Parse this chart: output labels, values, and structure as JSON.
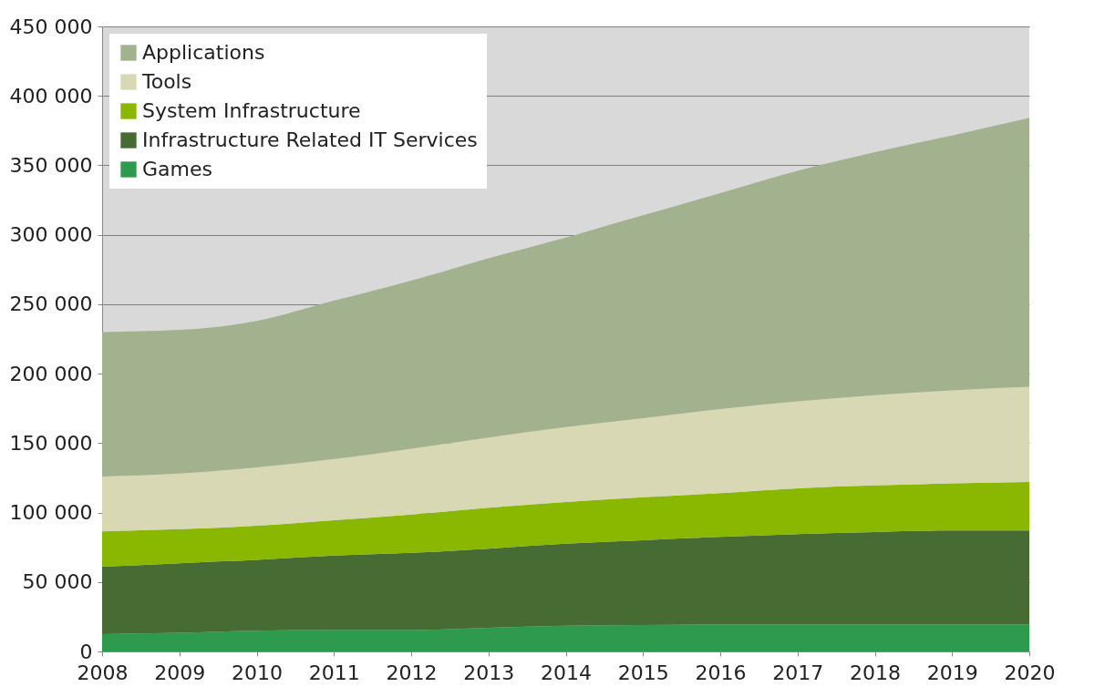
{
  "chart_data": {
    "type": "area",
    "stacked": true,
    "categories": [
      "2008",
      "2009",
      "2010",
      "2011",
      "2012",
      "2013",
      "2014",
      "2015",
      "2016",
      "2017",
      "2018",
      "2019",
      "2020"
    ],
    "series": [
      {
        "name": "Games",
        "color": "#2e9a4e",
        "values": [
          12500,
          13500,
          15000,
          15500,
          15500,
          17000,
          18500,
          19000,
          19500,
          19500,
          19500,
          19500,
          19500
        ]
      },
      {
        "name": "Infrastructure Related IT Services",
        "color": "#466b33",
        "values": [
          48500,
          50000,
          51000,
          53500,
          55500,
          57000,
          59000,
          61000,
          63000,
          65000,
          66500,
          67500,
          67500
        ]
      },
      {
        "name": "System Infrastructure",
        "color": "#8ab800",
        "values": [
          25500,
          24500,
          24500,
          25500,
          27500,
          29500,
          30000,
          31000,
          31500,
          33000,
          33500,
          34000,
          35000
        ]
      },
      {
        "name": "Tools",
        "color": "#d8d9b4",
        "values": [
          39500,
          40000,
          42000,
          44000,
          47500,
          50500,
          54000,
          57000,
          60500,
          62500,
          65000,
          67000,
          68500
        ]
      },
      {
        "name": "Applications",
        "color": "#a2b28e",
        "values": [
          104000,
          103500,
          105500,
          114000,
          121000,
          129000,
          136500,
          146000,
          155500,
          166000,
          175000,
          183500,
          193500
        ]
      }
    ],
    "ylim": [
      0,
      450000
    ],
    "yticks": [
      0,
      50000,
      100000,
      150000,
      200000,
      250000,
      300000,
      350000,
      400000,
      450000
    ],
    "grid": "y",
    "legend": "top left"
  }
}
